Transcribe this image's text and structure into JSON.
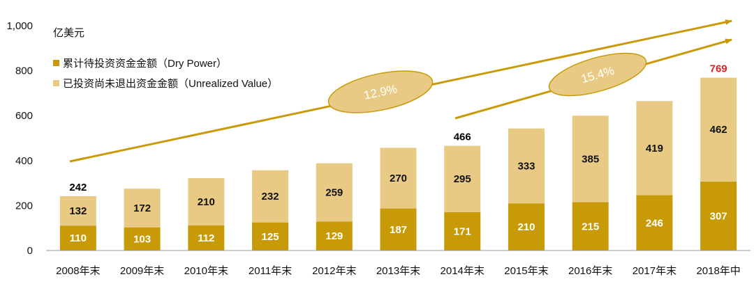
{
  "chart_data": {
    "type": "bar",
    "stacked": true,
    "unit_label": "亿美元",
    "categories": [
      "2008年末",
      "2009年末",
      "2010年末",
      "2011年末",
      "2012年末",
      "2013年末",
      "2014年末",
      "2015年末",
      "2016年末",
      "2017年末",
      "2018年中"
    ],
    "series": [
      {
        "name": "累计待投资资金金额（Dry Power）",
        "color": "#C99A08",
        "label_color": "#ffffff",
        "values": [
          110,
          103,
          112,
          125,
          129,
          187,
          171,
          210,
          215,
          246,
          307
        ]
      },
      {
        "name": "已投资尚未退出资金金额（Unrealized Value）",
        "color": "#E9CA84",
        "label_color": "#111111",
        "values": [
          132,
          172,
          210,
          232,
          259,
          270,
          295,
          333,
          385,
          419,
          462
        ]
      }
    ],
    "totals": [
      {
        "index": 0,
        "label": "242",
        "color": "#000000"
      },
      {
        "index": 6,
        "label": "466",
        "color": "#000000"
      },
      {
        "index": 10,
        "label": "769",
        "color": "#E02020"
      }
    ],
    "yticks": [
      "0",
      "200",
      "400",
      "600",
      "800",
      "1,000"
    ],
    "ylim": [
      0,
      1000
    ],
    "annotations": [
      {
        "label": "12.9%",
        "from_index": 0,
        "to_index": 10
      },
      {
        "label": "15.4%",
        "from_index": 6,
        "to_index": 10
      }
    ],
    "accent_color": "#C99A08",
    "ellipse_color": "#E9CA84"
  }
}
